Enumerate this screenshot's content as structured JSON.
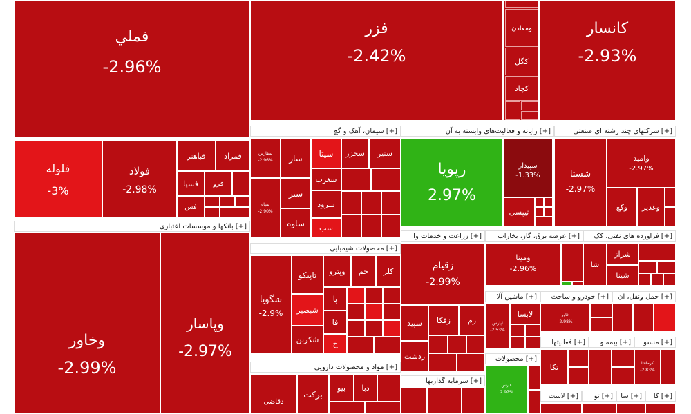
{
  "colors": {
    "red": "#b80d12",
    "dark_red": "#8b0b0e",
    "bright_red": "#e31519",
    "green": "#30b316"
  },
  "big_tiles": {
    "fameli": {
      "name": "فملي",
      "change": "-2.96%"
    },
    "fezar": {
      "name": "فزر",
      "change": "-2.42%"
    },
    "kansar": {
      "name": "کانسار",
      "change": "-2.93%"
    },
    "foolah": {
      "name": "فلوله",
      "change": "-3%"
    },
    "foolad": {
      "name": "فولاد",
      "change": "-2.98%"
    },
    "vakhavar": {
      "name": "وخاور",
      "change": "-2.99%"
    },
    "vpasar": {
      "name": "وپاسار",
      "change": "-2.97%"
    },
    "rupia": {
      "name": "رپویا",
      "change": "2.97%"
    },
    "shasta": {
      "name": "شستا",
      "change": "-2.97%"
    },
    "zaghiam": {
      "name": "زقیام",
      "change": "-2.99%"
    },
    "vamina": {
      "name": "ومینا",
      "change": "-2.96%"
    },
    "shegoya": {
      "name": "شگویا",
      "change": "-2.9%"
    },
    "vamid": {
      "name": "وامید",
      "change": "-2.97%"
    },
    "sepidar": {
      "name": "سپیدار",
      "change": "-1.33%"
    }
  },
  "small_labels": {
    "vamaaden": "ومعادن",
    "kegol": "کگل",
    "kechad": "کچاد",
    "famrad": "فمراد",
    "fabahnar": "فباهنر",
    "fesepa": "فسپا",
    "fero": "فرو",
    "fes": "فس",
    "sanir": "سنیر",
    "sakhzar": "سخزر",
    "sita": "سیتا",
    "sar": "سار",
    "seghrab": "سغرب",
    "setar": "ستر",
    "sorood": "سرود",
    "saveh": "ساوه",
    "sab": "سب",
    "tapiko": "تاپیکو",
    "vapetro": "وپترو",
    "jam": "جم",
    "kelar": "کلر",
    "shabsir": "شبصیر",
    "shekarbin": "شکربن",
    "pa": "پا",
    "fa": "فا",
    "kh": "خ",
    "shiraz": "شراز",
    "shina": "شینا",
    "sha": "شا",
    "zafka": "زفکا",
    "zam": "زم",
    "sepid": "سپید",
    "zadasht": "زدشت",
    "labsa": "لابسا",
    "vaghdir": "وغدیر",
    "vakagh": "وکغ",
    "tipsi": "تیپسی",
    "barkat": "برکت",
    "daba": "دبا",
    "dabi": "بیو",
    "deghazi": "دقاضی",
    "tika": "تکا"
  },
  "mini": {
    "m1": {
      "name": "سفارس",
      "change": "-2.96%"
    },
    "m2": {
      "name": "سپاه",
      "change": "-2.90%"
    },
    "m3": {
      "name": "خاور",
      "change": "-2.98%"
    },
    "m4": {
      "name": "خزر",
      "change": "-2.93%"
    },
    "m5": {
      "name": "لپارس",
      "change": "-2.53%"
    },
    "m6": {
      "name": "کرماشا",
      "change": "-2.83%"
    },
    "m7": {
      "name": "فارس",
      "change": "2.97%"
    }
  },
  "sectors": {
    "s1": "سیمان، آهک و گچ [+]",
    "s2": "رایانه و فعالیت‌های وابسته به آن [+]",
    "s3": "شرکتهای چند رشته ای صنعتی [+]",
    "s4": "بانکها و موسسات اعتباری [+]",
    "s5": "محصولات شیمیایی [+]",
    "s6": "زراعت و خدمات وا [+]",
    "s7": "عرضه برق، گاز، بخاراب [+]",
    "s8": "فراورده های نفتی، کک [+]",
    "s9": "ماشین آلا [+]",
    "s10": "خودرو و ساخت [+]",
    "s11": "حمل ونقل، ان [+]",
    "s12": "مواد و محصولات دارویی [+]",
    "s13": "سرمایه گذاریها [+]",
    "s14": "محصولات [+]",
    "s15": "فعالیتها [+]",
    "s16": "بیمه و [+]",
    "s17": "منسو [+]",
    "s18": "لاست [+]",
    "s19": "تو [+]",
    "s20": "سا [+]",
    "s21": "کا [+]"
  }
}
